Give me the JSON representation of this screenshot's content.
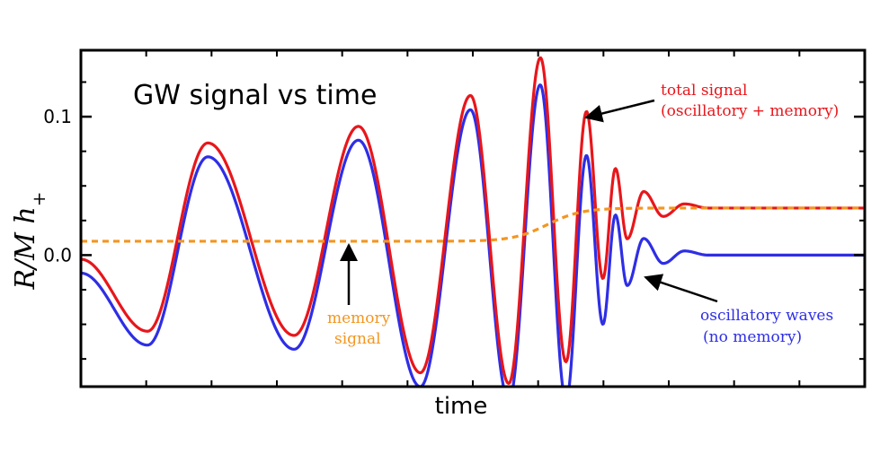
{
  "chart_data": {
    "type": "line",
    "title": "GW signal vs time",
    "xlabel": "time",
    "ylabel": "R/M h+",
    "ylim": [
      -0.095,
      0.148
    ],
    "xlim": [
      0,
      1
    ],
    "yticks": [
      {
        "value": 0.1,
        "label": "0.1"
      },
      {
        "value": 0.0,
        "label": "0.0"
      }
    ],
    "grid": false,
    "series": [
      {
        "name": "total signal (oscillatory + memory)",
        "color": "#e8161b",
        "style": "solid"
      },
      {
        "name": "oscillatory waves (no memory)",
        "color": "#2e2ee6",
        "style": "solid"
      },
      {
        "name": "memory signal",
        "color": "#f39620",
        "style": "dashed"
      }
    ],
    "annotations": [
      {
        "target": "total",
        "color": "#e8161b",
        "lines": [
          "total signal",
          "(oscillatory + memory)"
        ]
      },
      {
        "target": "memory",
        "color": "#f39620",
        "lines": [
          "memory",
          "signal"
        ]
      },
      {
        "target": "oscillatory",
        "color": "#2e2ee6",
        "lines": [
          "oscillatory waves",
          "(no memory)"
        ]
      }
    ],
    "memory_level_start": 0.01,
    "memory_level_end": 0.034
  }
}
